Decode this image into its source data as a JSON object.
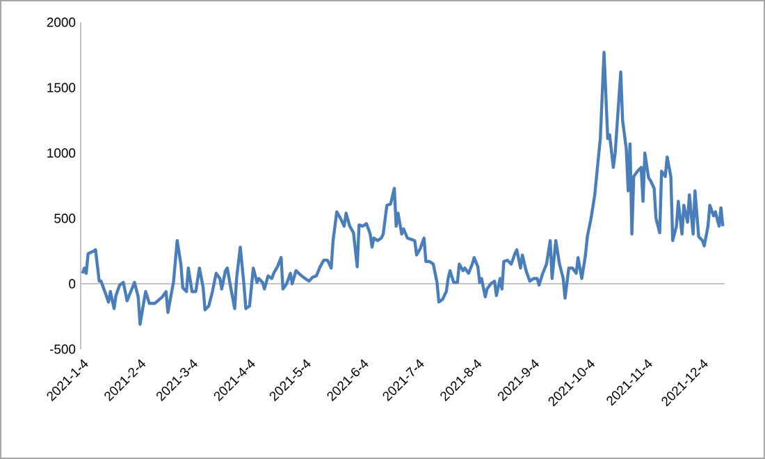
{
  "chart_data": {
    "type": "line",
    "color": "#4a7ebb",
    "marker": "none",
    "line_style": "solid",
    "legend": false,
    "xlim": [
      "2021-01-04",
      "2021-12-17"
    ],
    "ylim": [
      -500,
      2000
    ],
    "yticks": [
      -500,
      0,
      500,
      1000,
      1500,
      2000
    ],
    "xticks": [
      {
        "value": "2021-01-04",
        "label": "2021-1-4"
      },
      {
        "value": "2021-02-04",
        "label": "2021-2-4"
      },
      {
        "value": "2021-03-04",
        "label": "2021-3-4"
      },
      {
        "value": "2021-04-04",
        "label": "2021-4-4"
      },
      {
        "value": "2021-05-04",
        "label": "2021-5-4"
      },
      {
        "value": "2021-06-04",
        "label": "2021-6-4"
      },
      {
        "value": "2021-07-04",
        "label": "2021-7-4"
      },
      {
        "value": "2021-08-04",
        "label": "2021-8-4"
      },
      {
        "value": "2021-09-04",
        "label": "2021-9-4"
      },
      {
        "value": "2021-10-04",
        "label": "2021-10-4"
      },
      {
        "value": "2021-11-04",
        "label": "2021-11-4"
      },
      {
        "value": "2021-12-04",
        "label": "2021-12-4"
      }
    ],
    "x": [
      "2021-01-05",
      "2021-01-06",
      "2021-01-07",
      "2021-01-08",
      "2021-01-11",
      "2021-01-12",
      "2021-01-14",
      "2021-01-15",
      "2021-01-17",
      "2021-01-19",
      "2021-01-20",
      "2021-01-22",
      "2021-01-23",
      "2021-01-25",
      "2021-01-27",
      "2021-01-29",
      "2021-01-31",
      "2021-02-02",
      "2021-02-04",
      "2021-02-05",
      "2021-02-07",
      "2021-02-08",
      "2021-02-10",
      "2021-02-13",
      "2021-02-17",
      "2021-02-19",
      "2021-02-20",
      "2021-02-21",
      "2021-02-23",
      "2021-02-25",
      "2021-02-27",
      "2021-02-28",
      "2021-03-02",
      "2021-03-03",
      "2021-03-05",
      "2021-03-07",
      "2021-03-09",
      "2021-03-11",
      "2021-03-12",
      "2021-03-14",
      "2021-03-16",
      "2021-03-18",
      "2021-03-20",
      "2021-03-21",
      "2021-03-23",
      "2021-03-24",
      "2021-03-26",
      "2021-03-28",
      "2021-03-29",
      "2021-03-31",
      "2021-04-02",
      "2021-04-03",
      "2021-04-05",
      "2021-04-07",
      "2021-04-09",
      "2021-04-10",
      "2021-04-12",
      "2021-04-13",
      "2021-04-15",
      "2021-04-17",
      "2021-04-18",
      "2021-04-20",
      "2021-04-22",
      "2021-04-23",
      "2021-04-25",
      "2021-04-27",
      "2021-04-28",
      "2021-04-30",
      "2021-05-03",
      "2021-05-07",
      "2021-05-09",
      "2021-05-11",
      "2021-05-13",
      "2021-05-15",
      "2021-05-17",
      "2021-05-19",
      "2021-05-20",
      "2021-05-22",
      "2021-05-24",
      "2021-05-26",
      "2021-05-27",
      "2021-05-29",
      "2021-05-31",
      "2021-06-01",
      "2021-06-02",
      "2021-06-03",
      "2021-06-05",
      "2021-06-07",
      "2021-06-09",
      "2021-06-10",
      "2021-06-11",
      "2021-06-13",
      "2021-06-15",
      "2021-06-16",
      "2021-06-18",
      "2021-06-20",
      "2021-06-22",
      "2021-06-23",
      "2021-06-24",
      "2021-06-26",
      "2021-06-27",
      "2021-06-29",
      "2021-07-01",
      "2021-07-03",
      "2021-07-04",
      "2021-07-06",
      "2021-07-08",
      "2021-07-09",
      "2021-07-11",
      "2021-07-13",
      "2021-07-15",
      "2021-07-16",
      "2021-07-18",
      "2021-07-20",
      "2021-07-21",
      "2021-07-22",
      "2021-07-24",
      "2021-07-26",
      "2021-07-27",
      "2021-07-29",
      "2021-07-30",
      "2021-08-01",
      "2021-08-03",
      "2021-08-04",
      "2021-08-06",
      "2021-08-07",
      "2021-08-08",
      "2021-08-10",
      "2021-08-11",
      "2021-08-13",
      "2021-08-15",
      "2021-08-16",
      "2021-08-18",
      "2021-08-19",
      "2021-08-20",
      "2021-08-22",
      "2021-08-24",
      "2021-08-26",
      "2021-08-27",
      "2021-08-29",
      "2021-08-30",
      "2021-09-01",
      "2021-09-03",
      "2021-09-05",
      "2021-09-07",
      "2021-09-08",
      "2021-09-10",
      "2021-09-12",
      "2021-09-14",
      "2021-09-15",
      "2021-09-17",
      "2021-09-19",
      "2021-09-21",
      "2021-09-22",
      "2021-09-24",
      "2021-09-26",
      "2021-09-28",
      "2021-09-29",
      "2021-10-01",
      "2021-10-03",
      "2021-10-04",
      "2021-10-06",
      "2021-10-08",
      "2021-10-10",
      "2021-10-11",
      "2021-10-13",
      "2021-10-15",
      "2021-10-16",
      "2021-10-18",
      "2021-10-19",
      "2021-10-22",
      "2021-10-23",
      "2021-10-25",
      "2021-10-26",
      "2021-10-27",
      "2021-10-28",
      "2021-10-29",
      "2021-10-31",
      "2021-11-02",
      "2021-11-03",
      "2021-11-04",
      "2021-11-06",
      "2021-11-07",
      "2021-11-09",
      "2021-11-10",
      "2021-11-12",
      "2021-11-13",
      "2021-11-15",
      "2021-11-16",
      "2021-11-18",
      "2021-11-19",
      "2021-11-21",
      "2021-11-22",
      "2021-11-24",
      "2021-11-25",
      "2021-11-27",
      "2021-11-28",
      "2021-11-30",
      "2021-12-01",
      "2021-12-03",
      "2021-12-05",
      "2021-12-06",
      "2021-12-08",
      "2021-12-09",
      "2021-12-11",
      "2021-12-12",
      "2021-12-14",
      "2021-12-15",
      "2021-12-16"
    ],
    "values": [
      80,
      120,
      80,
      230,
      250,
      260,
      20,
      20,
      -60,
      -140,
      -60,
      -190,
      -90,
      -10,
      10,
      -130,
      -60,
      10,
      -100,
      -310,
      -140,
      -60,
      -150,
      -150,
      -100,
      -60,
      -220,
      -140,
      10,
      330,
      150,
      -30,
      -60,
      120,
      -60,
      -60,
      120,
      -30,
      -200,
      -170,
      -60,
      80,
      40,
      -40,
      100,
      120,
      -40,
      -190,
      40,
      280,
      -10,
      -190,
      -170,
      120,
      10,
      40,
      10,
      -40,
      60,
      40,
      80,
      130,
      200,
      -40,
      0,
      80,
      0,
      100,
      60,
      20,
      50,
      60,
      130,
      180,
      180,
      120,
      330,
      550,
      500,
      440,
      540,
      440,
      390,
      260,
      130,
      450,
      440,
      460,
      380,
      280,
      350,
      330,
      350,
      380,
      600,
      610,
      730,
      440,
      540,
      380,
      420,
      350,
      340,
      330,
      220,
      270,
      350,
      170,
      170,
      150,
      10,
      -140,
      -120,
      -60,
      40,
      100,
      10,
      10,
      150,
      100,
      120,
      80,
      150,
      200,
      130,
      10,
      40,
      -100,
      -40,
      0,
      20,
      -90,
      40,
      -40,
      170,
      180,
      150,
      230,
      260,
      120,
      220,
      100,
      20,
      40,
      40,
      -10,
      80,
      150,
      330,
      40,
      330,
      150,
      40,
      -110,
      120,
      120,
      80,
      200,
      40,
      220,
      360,
      500,
      680,
      970,
      1110,
      1770,
      1110,
      1140,
      890,
      1000,
      1620,
      1250,
      1030,
      710,
      1070,
      380,
      820,
      860,
      890,
      630,
      1000,
      810,
      790,
      730,
      500,
      390,
      860,
      820,
      970,
      820,
      330,
      440,
      630,
      380,
      600,
      470,
      680,
      380,
      710,
      360,
      330,
      290,
      440,
      600,
      520,
      550,
      440,
      580,
      440
    ]
  }
}
